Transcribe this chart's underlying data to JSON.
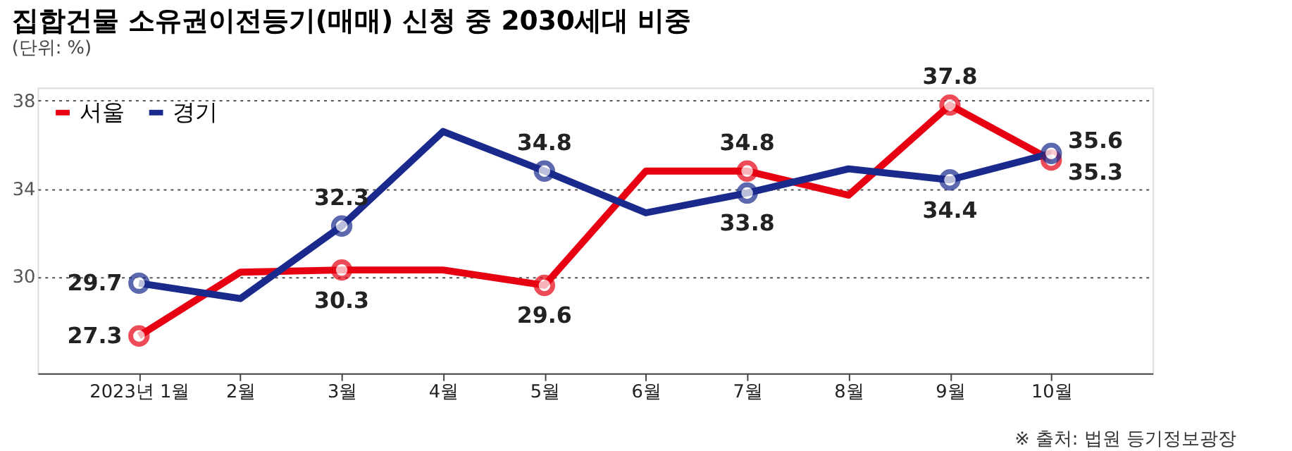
{
  "chart_data": {
    "type": "line",
    "title": "집합건물 소유권이전등기(매매) 신청 중 2030세대 비중",
    "subtitle": "(단위: %)",
    "categories": [
      "2023년 1월",
      "2월",
      "3월",
      "4월",
      "5월",
      "6월",
      "7월",
      "8월",
      "9월",
      "10월"
    ],
    "series": [
      {
        "name": "서울",
        "color": "#e60012",
        "values": [
          27.3,
          30.2,
          30.3,
          30.3,
          29.6,
          34.8,
          34.8,
          33.7,
          37.8,
          35.3
        ],
        "value_labels": [
          "27.3",
          null,
          "30.3",
          null,
          "29.6",
          null,
          "34.8",
          null,
          "37.8",
          "35.3"
        ]
      },
      {
        "name": "경기",
        "color": "#1a2a8c",
        "values": [
          29.7,
          29.0,
          32.3,
          36.6,
          34.8,
          32.9,
          33.8,
          34.9,
          34.4,
          35.6
        ],
        "value_labels": [
          "29.7",
          null,
          "32.3",
          null,
          "34.8",
          null,
          "33.8",
          null,
          "34.4",
          "35.6"
        ]
      }
    ],
    "ylim": [
      25.6,
      38.6
    ],
    "yticks": [
      30,
      34,
      38
    ],
    "grid": "y",
    "legend": "top left",
    "marker": "circle",
    "line_style": "solid",
    "annotations": [
      "※ 출처: 법원 등기정보광장"
    ]
  }
}
